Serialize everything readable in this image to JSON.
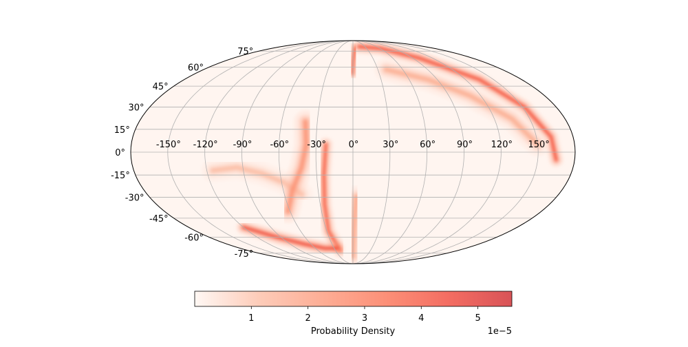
{
  "chart_data": {
    "type": "heatmap",
    "projection": "mollweide",
    "title": "",
    "grid": true,
    "colormap": "Reds",
    "colormap_colors": [
      "#fff5f0",
      "#fcbba1",
      "#fc9272",
      "#fb6a4a",
      "#ef3b2c",
      "#cb181d"
    ],
    "alpha": 0.7,
    "grid_color": "#b0b0b0",
    "longitude_ticks": [
      -150,
      -120,
      -90,
      -60,
      -30,
      0,
      30,
      60,
      90,
      120,
      150
    ],
    "longitude_tick_labels": [
      "-150°",
      "-120°",
      "-90°",
      "-60°",
      "-30°",
      "0°",
      "30°",
      "60°",
      "90°",
      "120°",
      "150°"
    ],
    "latitude_ticks": [
      75,
      60,
      45,
      30,
      15,
      0,
      -15,
      -30,
      -45,
      -60,
      -75
    ],
    "latitude_tick_labels": [
      "75°",
      "60°",
      "45°",
      "30°",
      "15°",
      "0°",
      "-15°",
      "-30°",
      "-45°",
      "-60°",
      "-75°"
    ],
    "colorbar": {
      "label": "Probability Density",
      "orientation": "horizontal",
      "placement": "bottom",
      "min": 0,
      "max": 5.6,
      "ticks": [
        1,
        2,
        3,
        4,
        5
      ],
      "tick_labels": [
        "1",
        "2",
        "3",
        "4",
        "5"
      ],
      "offset_text": "1e−5"
    },
    "density_arcs": [
      {
        "points": [
          [
            15,
            80
          ],
          [
            60,
            78
          ],
          [
            100,
            68
          ],
          [
            135,
            50
          ],
          [
            152,
            30
          ],
          [
            162,
            10
          ],
          [
            165,
            -5
          ]
        ],
        "peak": 4.4
      },
      {
        "points": [
          [
            40,
            58
          ],
          [
            80,
            50
          ],
          [
            110,
            38
          ],
          [
            135,
            22
          ],
          [
            150,
            5
          ]
        ],
        "peak": 1.6
      },
      {
        "points": [
          [
            5,
            78
          ],
          [
            2,
            72
          ],
          [
            0,
            65
          ],
          [
            -1,
            55
          ]
        ],
        "peak": 3.8
      },
      {
        "points": [
          [
            -115,
            -12
          ],
          [
            -95,
            -10
          ],
          [
            -75,
            -14
          ],
          [
            -58,
            -20
          ],
          [
            -45,
            -28
          ]
        ],
        "peak": 1.2
      },
      {
        "points": [
          [
            -40,
            20
          ],
          [
            -38,
            5
          ],
          [
            -42,
            -10
          ],
          [
            -52,
            -25
          ],
          [
            -62,
            -40
          ]
        ],
        "peak": 2.4
      },
      {
        "points": [
          [
            -22,
            5
          ],
          [
            -24,
            -15
          ],
          [
            -26,
            -35
          ],
          [
            -28,
            -55
          ],
          [
            -22,
            -72
          ]
        ],
        "peak": 4.0
      },
      {
        "points": [
          [
            -120,
            -52
          ],
          [
            -95,
            -60
          ],
          [
            -70,
            -66
          ],
          [
            -45,
            -70
          ],
          [
            -25,
            -70
          ]
        ],
        "peak": 4.6
      },
      {
        "points": [
          [
            3,
            -30
          ],
          [
            1,
            -50
          ],
          [
            0,
            -65
          ],
          [
            -1,
            -78
          ]
        ],
        "peak": 1.8
      }
    ]
  }
}
